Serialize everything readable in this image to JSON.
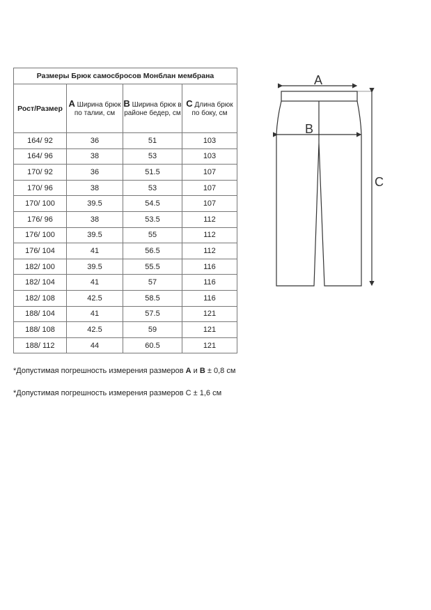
{
  "table": {
    "title": "Размеры Брюк самосбросов Монблан мембрана",
    "headers": [
      {
        "letter": "",
        "text": "Рост/Размер"
      },
      {
        "letter": "A",
        "text": " Ширина брюк по талии, см"
      },
      {
        "letter": "B",
        "text": " Ширина брюк в районе бедер, см"
      },
      {
        "letter": "C",
        "text": " Длина брюк по боку, см"
      }
    ],
    "rows": [
      [
        "164/ 92",
        "36",
        "51",
        "103"
      ],
      [
        "164/ 96",
        "38",
        "53",
        "103"
      ],
      [
        "170/ 92",
        "36",
        "51.5",
        "107"
      ],
      [
        "170/ 96",
        "38",
        "53",
        "107"
      ],
      [
        "170/ 100",
        "39.5",
        "54.5",
        "107"
      ],
      [
        "176/ 96",
        "38",
        "53.5",
        "112"
      ],
      [
        "176/ 100",
        "39.5",
        "55",
        "112"
      ],
      [
        "176/ 104",
        "41",
        "56.5",
        "112"
      ],
      [
        "182/ 100",
        "39.5",
        "55.5",
        "116"
      ],
      [
        "182/ 104",
        "41",
        "57",
        "116"
      ],
      [
        "182/ 108",
        "42.5",
        "58.5",
        "116"
      ],
      [
        "188/ 104",
        "41",
        "57.5",
        "121"
      ],
      [
        "188/ 108",
        "42.5",
        "59",
        "121"
      ],
      [
        "188/ 112",
        "44",
        "60.5",
        "121"
      ]
    ]
  },
  "notes": {
    "n1_pre": "*Допустимая погрешность измерения размеров ",
    "n1_a": "A",
    "n1_mid": " и ",
    "n1_b": "B",
    "n1_post": " ± 0,8 см",
    "n2_pre": "*Допустимая погрешность измерения размеров ",
    "n2_c": "C",
    "n2_post": " ± 1,6 см"
  },
  "diagram": {
    "label_a": "A",
    "label_b": "B",
    "label_c": "C"
  }
}
